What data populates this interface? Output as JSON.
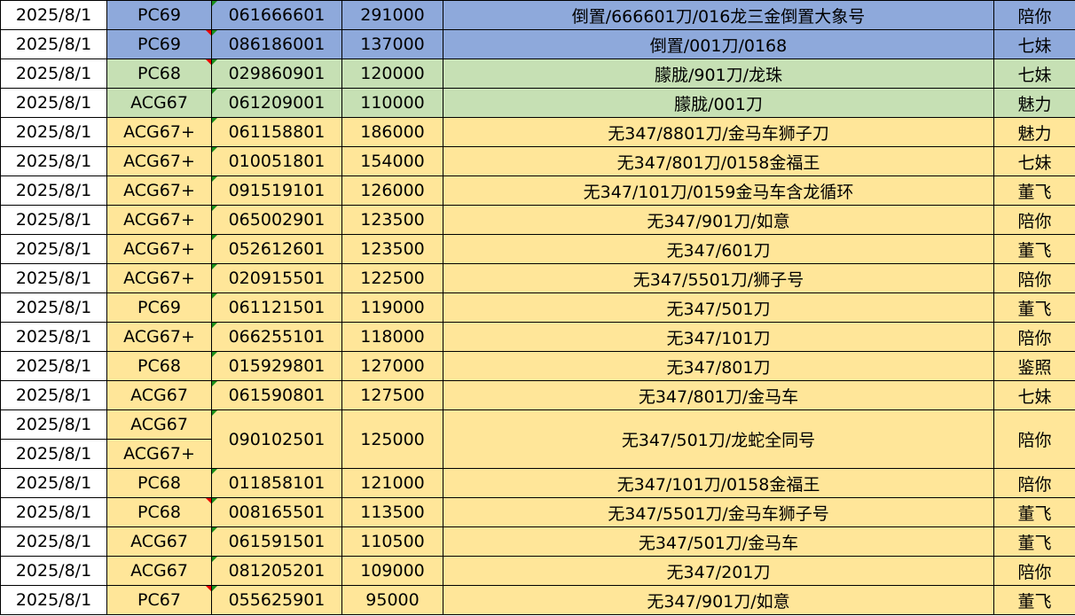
{
  "colors": {
    "blue": "#8EA9DB",
    "green": "#C6E0B4",
    "yellow": "#FFE699"
  },
  "rows": [
    {
      "date": "2025/8/1",
      "type": "PC69",
      "code": "061666601",
      "value": "291000",
      "desc": "倒置/666601刀/016龙三金倒置大象号",
      "person": "陪你",
      "color": "blue"
    },
    {
      "date": "2025/8/1",
      "type": "PC69",
      "code": "086186001",
      "value": "137000",
      "desc": "倒置/001刀/0168",
      "person": "七妹",
      "color": "blue",
      "flag": true
    },
    {
      "date": "2025/8/1",
      "type": "PC68",
      "code": "029860901",
      "value": "120000",
      "desc": "朦胧/901刀/龙珠",
      "person": "七妹",
      "color": "green",
      "flag": true
    },
    {
      "date": "2025/8/1",
      "type": "ACG67",
      "code": "061209001",
      "value": "110000",
      "desc": "朦胧/001刀",
      "person": "魅力",
      "color": "green"
    },
    {
      "date": "2025/8/1",
      "type": "ACG67+",
      "code": "061158801",
      "value": "186000",
      "desc": "无347/8801刀/金马车狮子刀",
      "person": "魅力",
      "color": "yellow"
    },
    {
      "date": "2025/8/1",
      "type": "ACG67+",
      "code": "010051801",
      "value": "154000",
      "desc": "无347/801刀/0158金福王",
      "person": "七妹",
      "color": "yellow"
    },
    {
      "date": "2025/8/1",
      "type": "ACG67+",
      "code": "091519101",
      "value": "126000",
      "desc": "无347/101刀/0159金马车含龙循环",
      "person": "董飞",
      "color": "yellow"
    },
    {
      "date": "2025/8/1",
      "type": "ACG67+",
      "code": "065002901",
      "value": "123500",
      "desc": "无347/901刀/如意",
      "person": "陪你",
      "color": "yellow"
    },
    {
      "date": "2025/8/1",
      "type": "ACG67+",
      "code": "052612601",
      "value": "123500",
      "desc": "无347/601刀",
      "person": "董飞",
      "color": "yellow"
    },
    {
      "date": "2025/8/1",
      "type": "ACG67+",
      "code": "020915501",
      "value": "122500",
      "desc": "无347/5501刀/狮子号",
      "person": "陪你",
      "color": "yellow"
    },
    {
      "date": "2025/8/1",
      "type": "PC69",
      "code": "061121501",
      "value": "119000",
      "desc": "无347/501刀",
      "person": "董飞",
      "color": "yellow"
    },
    {
      "date": "2025/8/1",
      "type": "ACG67+",
      "code": "066255101",
      "value": "118000",
      "desc": "无347/101刀",
      "person": "陪你",
      "color": "yellow"
    },
    {
      "date": "2025/8/1",
      "type": "PC68",
      "code": "015929801",
      "value": "127000",
      "desc": "无347/801刀",
      "person": "鉴照",
      "color": "yellow"
    },
    {
      "date": "2025/8/1",
      "type": "ACG67",
      "code": "061590801",
      "value": "127500",
      "desc": "无347/801刀/金马车",
      "person": "七妹",
      "color": "yellow"
    },
    {
      "date": "2025/8/1",
      "type": "ACG67",
      "date2": "2025/8/1",
      "type2": "ACG67+",
      "code": "090102501",
      "value": "125000",
      "desc": "无347/501刀/龙蛇全同号",
      "person": "陪你",
      "color": "yellow",
      "merged": true
    },
    {
      "date": "2025/8/1",
      "type": "PC68",
      "code": "011858101",
      "value": "121000",
      "desc": "无347/101刀/0158金福王",
      "person": "陪你",
      "color": "yellow"
    },
    {
      "date": "2025/8/1",
      "type": "PC68",
      "code": "008165501",
      "value": "113500",
      "desc": "无347/5501刀/金马车狮子号",
      "person": "董飞",
      "color": "yellow",
      "flag": true
    },
    {
      "date": "2025/8/1",
      "type": "ACG67",
      "code": "061591501",
      "value": "110500",
      "desc": "无347/501刀/金马车",
      "person": "董飞",
      "color": "yellow"
    },
    {
      "date": "2025/8/1",
      "type": "ACG67",
      "code": "081205201",
      "value": "109000",
      "desc": "无347/201刀",
      "person": "陪你",
      "color": "yellow"
    },
    {
      "date": "2025/8/1",
      "type": "PC67",
      "code": "055625901",
      "value": "95000",
      "desc": "无347/901刀/如意",
      "person": "董飞",
      "color": "yellow",
      "flag": true
    }
  ]
}
